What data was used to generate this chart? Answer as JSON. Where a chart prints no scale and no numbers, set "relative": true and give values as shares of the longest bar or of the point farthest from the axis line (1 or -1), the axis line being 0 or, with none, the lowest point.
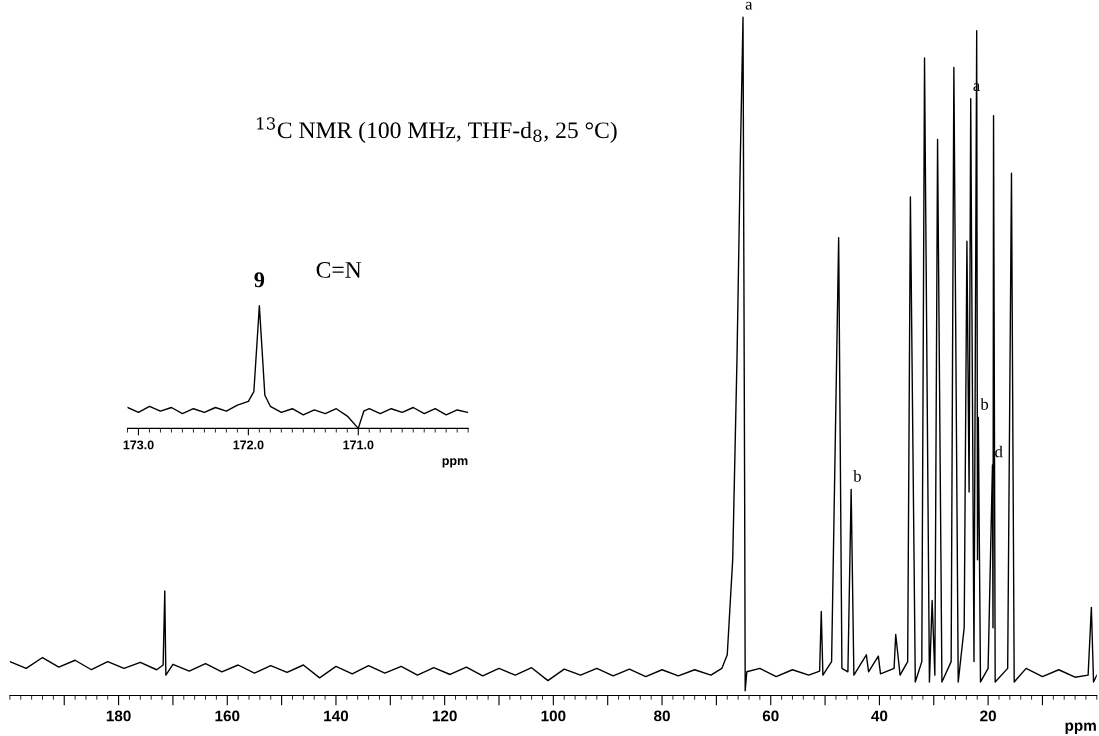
{
  "chart_data": [
    {
      "type": "line",
      "relative": true,
      "title": "$^{13}$C NMR (100 MHz, THF-d$_{8}$, 25 °C)",
      "xlabel": "ppm",
      "xlim": [
        200,
        0
      ],
      "xticks": [
        {
          "value": 190,
          "label": null
        },
        180,
        {
          "value": 170,
          "label": null
        },
        160,
        {
          "value": 150,
          "label": null
        },
        140,
        {
          "value": 130,
          "label": null
        },
        120,
        {
          "value": 110,
          "label": null
        },
        100,
        {
          "value": 90,
          "label": null
        },
        80,
        {
          "value": 70,
          "label": null
        },
        60,
        {
          "value": 50,
          "label": null
        },
        40,
        {
          "value": 30,
          "label": null
        },
        20,
        {
          "value": 10,
          "label": null
        }
      ],
      "tick_labels": "x",
      "series": [
        {
          "color": "#000000",
          "x": [
            200,
            197,
            194,
            191,
            188,
            185,
            182,
            179,
            176,
            173,
            171.8,
            171.5,
            171.3,
            170,
            167,
            164,
            161,
            158,
            155,
            152,
            149,
            146,
            143,
            140,
            137,
            134,
            131,
            128,
            125,
            122,
            119,
            116,
            113,
            110,
            107,
            104,
            101,
            98,
            95,
            92,
            89,
            86,
            83,
            80,
            77,
            74,
            71,
            69,
            68,
            67,
            66.2,
            65.6,
            65.1,
            64.8,
            64.7,
            64.4,
            62,
            59,
            56,
            53,
            51,
            50.7,
            50.4,
            48.8,
            47.5,
            46.9,
            45.8,
            45.2,
            44.7,
            42.4,
            42.0,
            40.2,
            39.8,
            37.3,
            37.0,
            36.2,
            34.8,
            34.3,
            33.4,
            32.2,
            31.7,
            30.8,
            30.3,
            29.8,
            29.3,
            28.5,
            26.8,
            26.3,
            25.5,
            24.4,
            23.9,
            23.5,
            23.2,
            22.6,
            22.1,
            21.95,
            21.8,
            21.4,
            20.0,
            19.2,
            19.1,
            19.0,
            18.7,
            16.4,
            15.7,
            15.2,
            13,
            10,
            7,
            4,
            1.6,
            1.0,
            0.6,
            0
          ],
          "values": [
            0.05,
            0.04,
            0.056,
            0.042,
            0.052,
            0.038,
            0.05,
            0.04,
            0.049,
            0.038,
            0.045,
            0.154,
            0.03,
            0.046,
            0.036,
            0.047,
            0.035,
            0.045,
            0.033,
            0.044,
            0.034,
            0.045,
            0.026,
            0.043,
            0.032,
            0.044,
            0.033,
            0.043,
            0.03,
            0.041,
            0.031,
            0.042,
            0.029,
            0.04,
            0.03,
            0.041,
            0.022,
            0.039,
            0.03,
            0.04,
            0.029,
            0.039,
            0.028,
            0.038,
            0.029,
            0.038,
            0.03,
            0.04,
            0.06,
            0.2,
            0.5,
            0.79,
            1.0,
            0.3,
            0.007,
            0.035,
            0.04,
            0.028,
            0.038,
            0.03,
            0.036,
            0.124,
            0.03,
            0.05,
            0.675,
            0.04,
            0.035,
            0.304,
            0.03,
            0.06,
            0.035,
            0.058,
            0.032,
            0.04,
            0.09,
            0.03,
            0.05,
            0.735,
            0.02,
            0.05,
            0.94,
            0.02,
            0.14,
            0.03,
            0.82,
            0.02,
            0.05,
            0.926,
            0.02,
            0.1,
            0.67,
            0.3,
            0.88,
            0.05,
            0.98,
            0.2,
            0.41,
            0.02,
            0.04,
            0.34,
            0.1,
            0.855,
            0.02,
            0.04,
            0.77,
            0.02,
            0.04,
            0.028,
            0.038,
            0.027,
            0.03,
            0.13,
            0.02,
            0.03
          ]
        }
      ],
      "annotations": [
        {
          "text": "a",
          "x": 65.1,
          "y": 1.0
        },
        {
          "text": "b",
          "x": 45.2,
          "y": 0.304
        },
        {
          "text": "a",
          "x": 23.2,
          "y": 0.88
        },
        {
          "text": "b",
          "x": 21.8,
          "y": 0.41
        },
        {
          "text": "d",
          "x": 19.2,
          "y": 0.34
        }
      ]
    },
    {
      "type": "line",
      "relative": true,
      "xlabel": "ppm",
      "xlim": [
        173.1,
        170.0
      ],
      "xticks": [
        {
          "value": 173,
          "label": "173.0"
        },
        {
          "value": 172,
          "label": "172.0"
        },
        {
          "value": 171,
          "label": "171.0"
        }
      ],
      "tick_labels": "x",
      "series": [
        {
          "color": "#000000",
          "x": [
            173.1,
            173.0,
            172.9,
            172.8,
            172.7,
            172.6,
            172.5,
            172.4,
            172.3,
            172.2,
            172.1,
            172.0,
            171.95,
            171.9,
            171.85,
            171.8,
            171.7,
            171.6,
            171.5,
            171.4,
            171.3,
            171.2,
            171.1,
            171.0,
            170.95,
            170.9,
            170.8,
            170.7,
            170.6,
            170.5,
            170.4,
            170.3,
            170.2,
            170.1,
            170.0
          ],
          "values": [
            0.17,
            0.13,
            0.18,
            0.14,
            0.17,
            0.12,
            0.16,
            0.13,
            0.17,
            0.14,
            0.19,
            0.22,
            0.3,
            1.0,
            0.27,
            0.18,
            0.13,
            0.16,
            0.11,
            0.15,
            0.12,
            0.16,
            0.1,
            0.0,
            0.14,
            0.16,
            0.12,
            0.16,
            0.13,
            0.17,
            0.12,
            0.16,
            0.11,
            0.15,
            0.13
          ]
        }
      ],
      "annotations": [
        {
          "text": "9",
          "x": 171.9,
          "y": 1.0
        },
        "C=N"
      ]
    }
  ]
}
